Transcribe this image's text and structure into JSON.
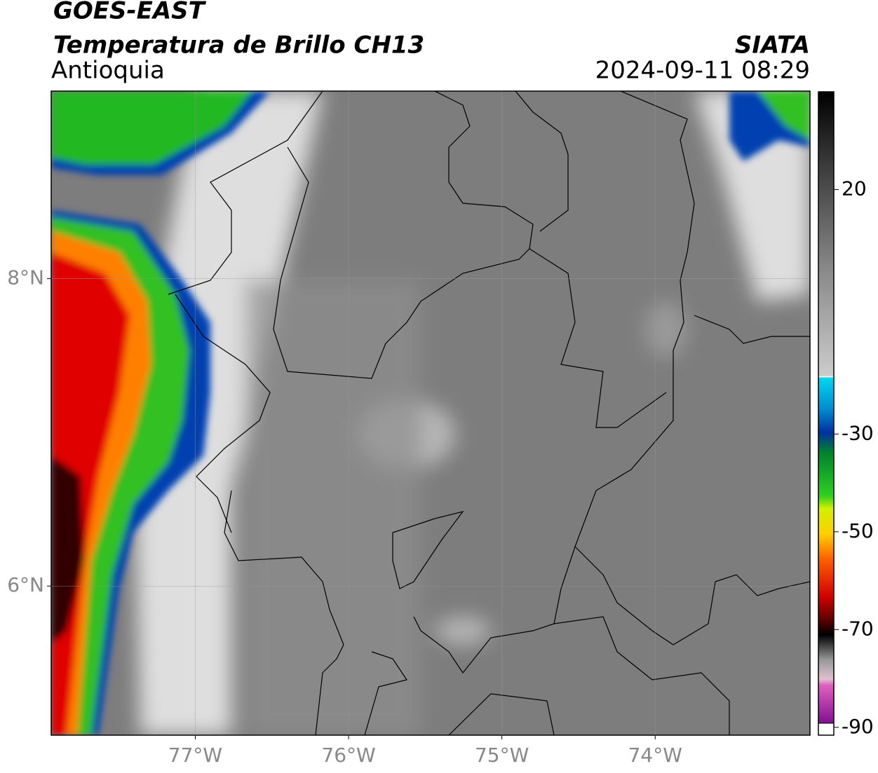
{
  "header": {
    "satellite": "GOES-EAST",
    "product": "Temperatura de Brillo CH13",
    "region": "Antioquia",
    "source": "SIATA",
    "datetime": "2024-09-11 08:29"
  },
  "map": {
    "xlim": [
      -77.94,
      -72.99
    ],
    "ylim": [
      5.03,
      9.22
    ],
    "xticks": [
      {
        "value": -77,
        "label": "77°W"
      },
      {
        "value": -76,
        "label": "76°W"
      },
      {
        "value": -75,
        "label": "75°W"
      },
      {
        "value": -74,
        "label": "74°W"
      }
    ],
    "yticks": [
      {
        "value": 8,
        "label": "8°N"
      },
      {
        "value": 6,
        "label": "6°N"
      }
    ],
    "grid": true
  },
  "colorbar": {
    "lim": [
      -91.6,
      40
    ],
    "ticks": [
      20,
      -30,
      -50,
      -70,
      -90
    ]
  }
}
